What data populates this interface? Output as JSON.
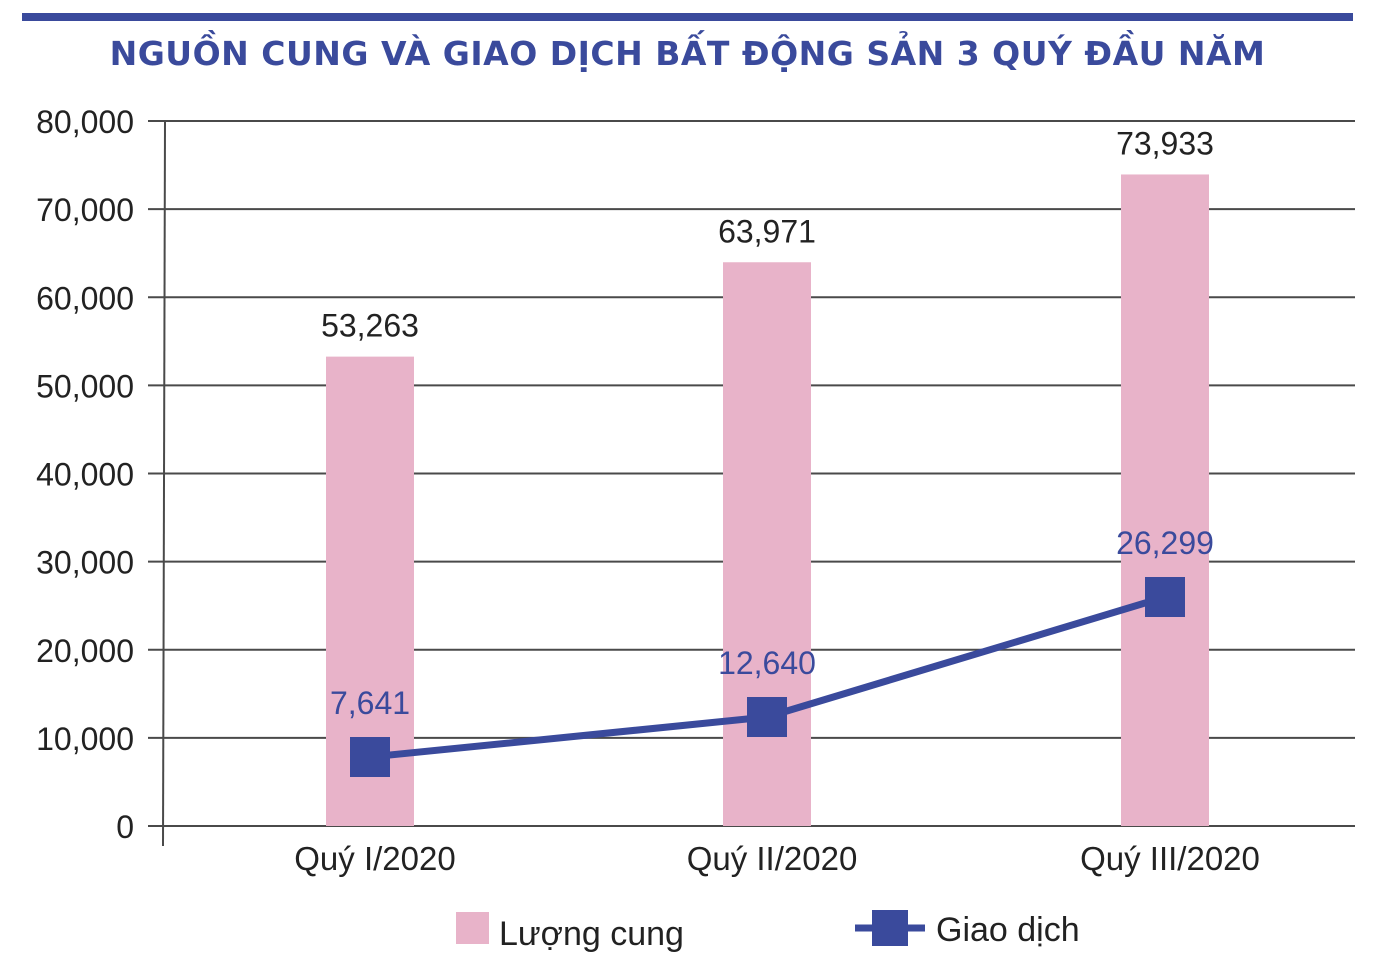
{
  "chart_data": {
    "type": "bar",
    "title": "NGUỒN CUNG VÀ GIAO DỊCH BẤT ĐỘNG SẢN 3 QUÝ ĐẦU NĂM",
    "categories": [
      "Quý I/2020",
      "Quý II/2020",
      "Quý III/2020"
    ],
    "series": [
      {
        "name": "Lượng cung",
        "kind": "bar",
        "color": "#e8b3c9",
        "values": [
          53263,
          63971,
          73933
        ],
        "labels": [
          "53,263",
          "63,971",
          "73,933"
        ]
      },
      {
        "name": "Giao dịch",
        "kind": "line",
        "color": "#3a4a9c",
        "values": [
          7641,
          12640,
          26299
        ],
        "labels": [
          "7,641",
          "12,640",
          "26,299"
        ]
      }
    ],
    "y_ticks": [
      "80,000",
      "70,000",
      "60,000",
      "50,000",
      "40,000",
      "30,000",
      "20,000",
      "10,000",
      "0"
    ],
    "ylim": [
      0,
      80000
    ],
    "grid": true,
    "legend_position": "bottom"
  }
}
